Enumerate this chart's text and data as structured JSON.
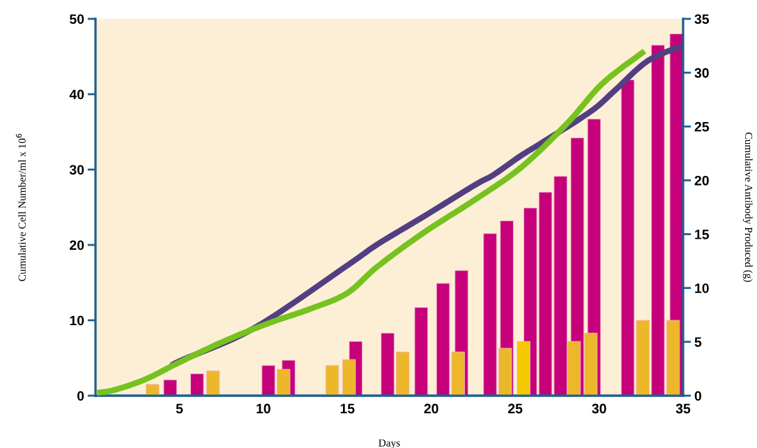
{
  "chart_data": {
    "type": "bar",
    "xlabel": "Days",
    "ylabel": "Cumulative Cell Number/ml x 10$^{6}$",
    "y2label": "Cumulative Antibody Produced (g)",
    "xlim": [
      0,
      35
    ],
    "xticks": [
      5,
      10,
      15,
      20,
      25,
      30,
      35
    ],
    "ylim": [
      0,
      50
    ],
    "yticks": [
      0,
      10,
      20,
      30,
      40,
      50
    ],
    "y2lim": [
      0,
      35
    ],
    "y2ticks": [
      0,
      5,
      10,
      15,
      20,
      25,
      30,
      35
    ],
    "grid": false,
    "series": [
      {
        "color": "#c6007a",
        "x": [
          4.45,
          6.05,
          10.3,
          11.5,
          15.5,
          17.4,
          19.4,
          20.7,
          21.8,
          23.5,
          24.5,
          25.9,
          26.8,
          27.7,
          28.7,
          29.7,
          31.7,
          33.5,
          34.6
        ],
        "values": [
          2.1,
          2.9,
          4.0,
          4.7,
          7.2,
          8.3,
          11.7,
          14.9,
          16.6,
          21.5,
          23.2,
          24.9,
          27.0,
          29.1,
          34.2,
          36.7,
          41.9,
          46.5,
          48.0
        ]
      },
      {
        "color": "#ecb82a",
        "colors": [
          null,
          null,
          null,
          null,
          null,
          null,
          null,
          null,
          "#f4c900",
          null,
          null,
          null,
          null
        ],
        "x": [
          3.4,
          7.0,
          11.2,
          14.1,
          15.1,
          18.3,
          21.6,
          24.4,
          25.5,
          28.5,
          29.5,
          32.6,
          34.4
        ],
        "values": [
          1.5,
          3.3,
          3.5,
          4.0,
          4.8,
          5.8,
          5.8,
          6.3,
          7.2,
          7.2,
          8.3,
          10.0,
          10.0
        ]
      },
      {
        "type": "line",
        "axis": "y2",
        "color": "#523f82",
        "x": [
          4.6,
          5.08,
          9.47,
          15.0,
          16.8,
          19.56,
          22.6,
          23.7,
          25.35,
          26.7,
          29.5,
          30.9,
          32.9,
          35.0
        ],
        "values": [
          2.8,
          3.26,
          6.29,
          12.1,
          14.06,
          16.65,
          19.57,
          20.5,
          22.3,
          23.6,
          26.4,
          28.3,
          31.1,
          32.5
        ]
      },
      {
        "type": "line",
        "axis": "y2",
        "color": "#76c21f",
        "x": [
          0.1,
          1.2,
          3.0,
          4.94,
          7.56,
          10.3,
          12.9,
          15.0,
          16.8,
          19.56,
          22.6,
          25.35,
          28.1,
          30.2,
          32.7
        ],
        "values": [
          0.26,
          0.56,
          1.54,
          3.05,
          4.99,
          6.72,
          8.12,
          9.53,
          12.0,
          15.15,
          18.2,
          21.2,
          25.3,
          29.0,
          32.0
        ]
      }
    ]
  }
}
